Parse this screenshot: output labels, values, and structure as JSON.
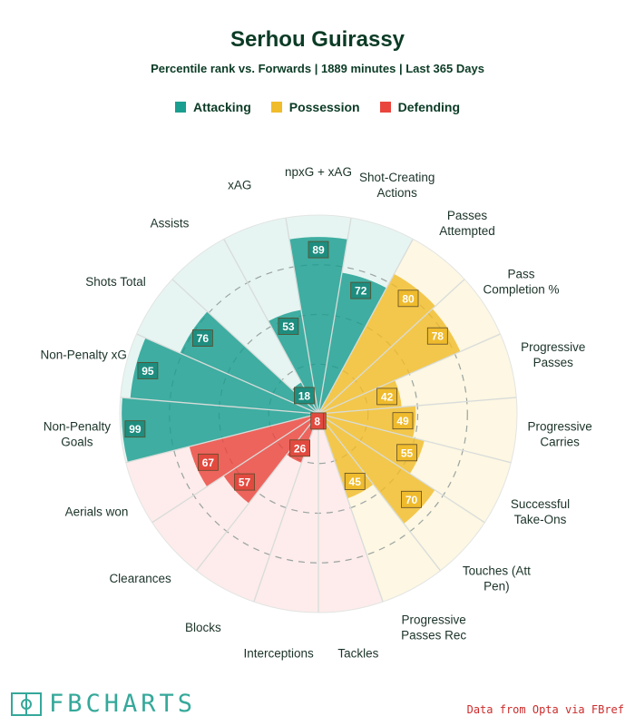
{
  "header": {
    "title": "Serhou Guirassy",
    "subtitle": "Percentile rank vs. Forwards | 1889 minutes | Last 365 Days"
  },
  "legend": [
    {
      "label": "Attacking",
      "color": "#1a9e8f"
    },
    {
      "label": "Possession",
      "color": "#f0bc2a"
    },
    {
      "label": "Defending",
      "color": "#e9453d"
    }
  ],
  "footer": {
    "logo_text": "FBCHARTS",
    "source": "Data from Opta via FBref"
  },
  "chart_data": {
    "type": "polar-bar",
    "rlim": [
      0,
      100
    ],
    "categories": [
      {
        "label": [
          "npxG + xAG"
        ],
        "value": 89,
        "group": "Attacking"
      },
      {
        "label": [
          "Shot-Creating",
          "Actions"
        ],
        "value": 72,
        "group": "Attacking"
      },
      {
        "label": [
          "Passes",
          "Attempted"
        ],
        "value": 80,
        "group": "Possession"
      },
      {
        "label": [
          "Pass",
          "Completion %"
        ],
        "value": 78,
        "group": "Possession"
      },
      {
        "label": [
          "Progressive",
          "Passes"
        ],
        "value": 42,
        "group": "Possession"
      },
      {
        "label": [
          "Progressive",
          "Carries"
        ],
        "value": 49,
        "group": "Possession"
      },
      {
        "label": [
          "Successful",
          "Take-Ons"
        ],
        "value": 55,
        "group": "Possession"
      },
      {
        "label": [
          "Touches (Att",
          "Pen)"
        ],
        "value": 70,
        "group": "Possession"
      },
      {
        "label": [
          "Progressive",
          "Passes Rec"
        ],
        "value": 45,
        "group": "Possession"
      },
      {
        "label": [
          "Tackles"
        ],
        "value": 4,
        "group": "Defending"
      },
      {
        "label": [
          "Interceptions"
        ],
        "value": 8,
        "group": "Defending"
      },
      {
        "label": [
          "Blocks"
        ],
        "value": 26,
        "group": "Defending"
      },
      {
        "label": [
          "Clearances"
        ],
        "value": 57,
        "group": "Defending"
      },
      {
        "label": [
          "Aerials won"
        ],
        "value": 67,
        "group": "Defending"
      },
      {
        "label": [
          "Non-Penalty",
          "Goals"
        ],
        "value": 99,
        "group": "Attacking"
      },
      {
        "label": [
          "Non-Penalty xG"
        ],
        "value": 95,
        "group": "Attacking"
      },
      {
        "label": [
          "Shots Total"
        ],
        "value": 76,
        "group": "Attacking"
      },
      {
        "label": [
          "Assists"
        ],
        "value": 18,
        "group": "Attacking"
      },
      {
        "label": [
          "xAG"
        ],
        "value": 53,
        "group": "Attacking"
      }
    ],
    "colors": {
      "Attacking": {
        "bar": "#1a9e8f",
        "bg": "#e6f5f2",
        "label": "#1e8d7f"
      },
      "Possession": {
        "bar": "#f0bc2a",
        "bg": "#fdf7e3",
        "label": "#efbb2d"
      },
      "Defending": {
        "bar": "#e9453d",
        "bg": "#fdeceb",
        "label": "#e24a3f"
      }
    }
  }
}
